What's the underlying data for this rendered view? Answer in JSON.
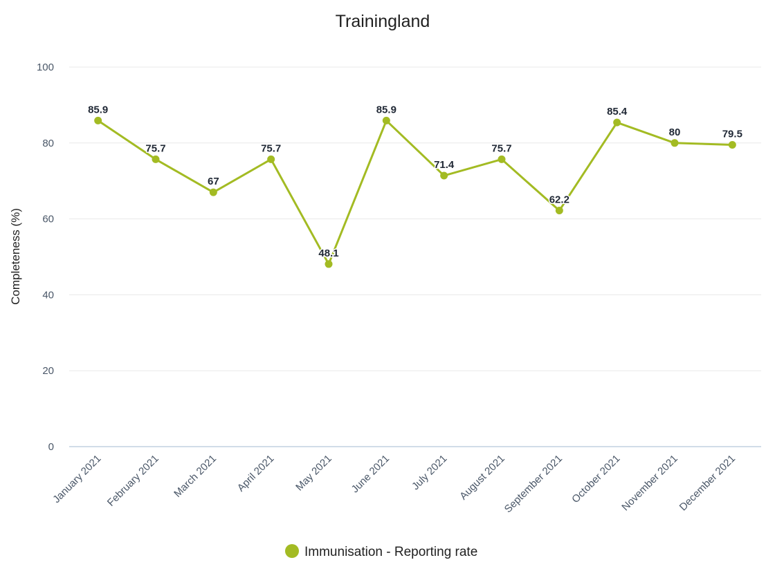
{
  "chart_data": {
    "type": "line",
    "title": "Trainingland",
    "xlabel": "",
    "ylabel": "Completeness (%)",
    "ylim": [
      0,
      100
    ],
    "yticks": [
      0,
      20,
      40,
      60,
      80,
      100
    ],
    "grid": true,
    "legend_position": "bottom-center",
    "categories": [
      "January 2021",
      "February 2021",
      "March 2021",
      "April 2021",
      "May 2021",
      "June 2021",
      "July 2021",
      "August 2021",
      "September 2021",
      "October 2021",
      "November 2021",
      "December 2021"
    ],
    "series": [
      {
        "name": "Immunisation - Reporting rate",
        "color": "#a3bb23",
        "values": [
          85.9,
          75.7,
          67,
          75.7,
          48.1,
          85.9,
          71.4,
          75.7,
          62.2,
          85.4,
          80,
          79.5
        ],
        "labels": [
          "85.9",
          "75.7",
          "67",
          "75.7",
          "48.1",
          "85.9",
          "71.4",
          "75.7",
          "62.2",
          "85.4",
          "80",
          "79.5"
        ]
      }
    ],
    "colors": {
      "gridline": "#e8e8e8",
      "axis_line": "#c2d1e0",
      "series": "#a3bb23"
    }
  }
}
